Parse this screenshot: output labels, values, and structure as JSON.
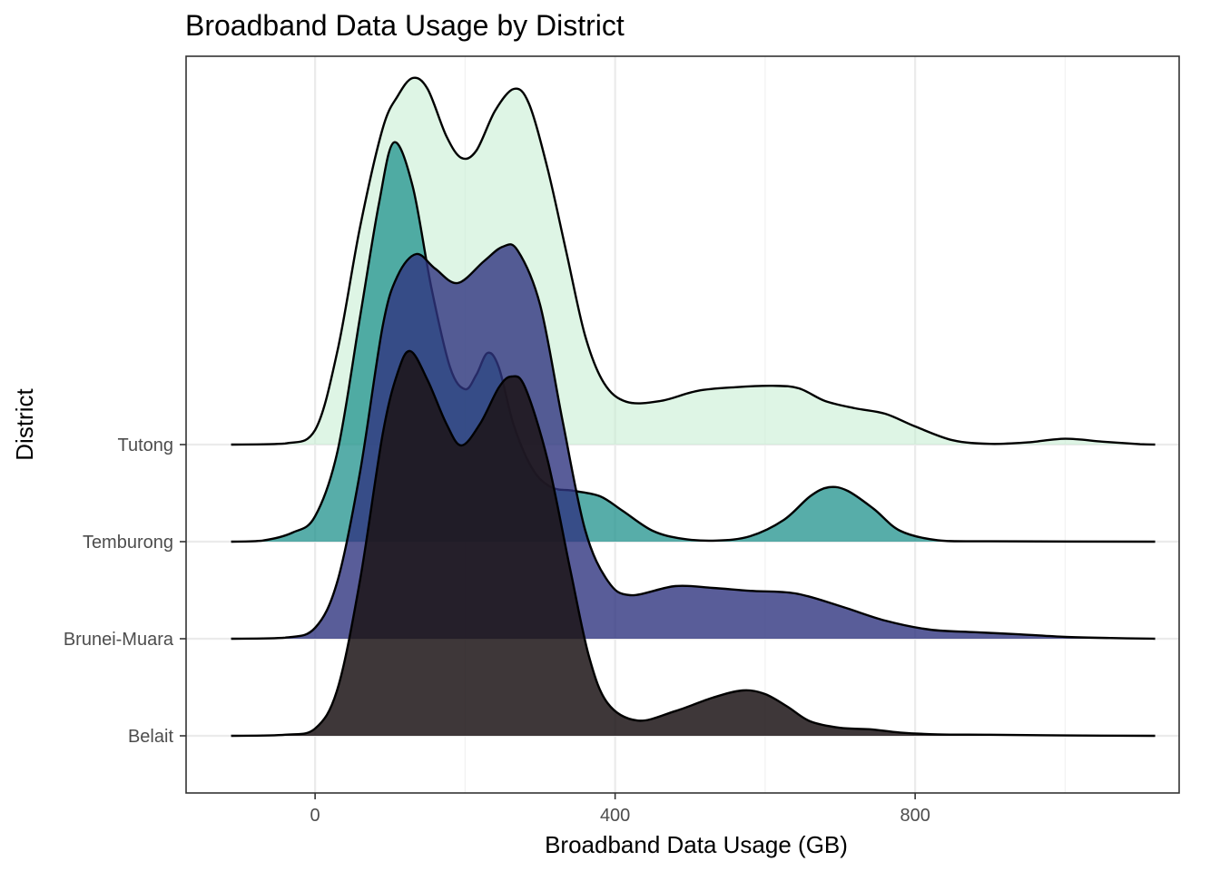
{
  "chart_data": {
    "type": "area",
    "subtype": "ridgeline",
    "title": "Broadband Data Usage by District",
    "xlabel": "Broadband Data Usage (GB)",
    "ylabel": "District",
    "xlim": [
      -172,
      1152
    ],
    "x_ticks": [
      0,
      400,
      800
    ],
    "x_minor_ticks": [
      200,
      600,
      1000
    ],
    "grid": true,
    "legend": "none",
    "categories": [
      "Belait",
      "Brunei-Muara",
      "Temburong",
      "Tutong"
    ],
    "series": [
      {
        "name": "Belait",
        "color": "#1c1416",
        "opacity": 0.85,
        "density": [
          [
            -112,
            0
          ],
          [
            -40,
            0.003
          ],
          [
            0,
            0.02
          ],
          [
            30,
            0.13
          ],
          [
            60,
            0.43
          ],
          [
            90,
            0.83
          ],
          [
            110,
            1.0
          ],
          [
            127,
            1.06
          ],
          [
            150,
            0.98
          ],
          [
            175,
            0.86
          ],
          [
            195,
            0.8
          ],
          [
            220,
            0.86
          ],
          [
            245,
            0.96
          ],
          [
            262,
            0.99
          ],
          [
            280,
            0.96
          ],
          [
            310,
            0.76
          ],
          [
            340,
            0.46
          ],
          [
            365,
            0.22
          ],
          [
            390,
            0.09
          ],
          [
            430,
            0.042
          ],
          [
            480,
            0.068
          ],
          [
            530,
            0.105
          ],
          [
            570,
            0.125
          ],
          [
            600,
            0.115
          ],
          [
            630,
            0.08
          ],
          [
            660,
            0.04
          ],
          [
            700,
            0.022
          ],
          [
            740,
            0.018
          ],
          [
            780,
            0.009
          ],
          [
            830,
            0.004
          ],
          [
            900,
            0.003
          ],
          [
            1000,
            0.001
          ],
          [
            1120,
            0
          ]
        ]
      },
      {
        "name": "Brunei-Muara",
        "color": "#303580",
        "opacity": 0.8,
        "density": [
          [
            -112,
            0
          ],
          [
            -40,
            0.003
          ],
          [
            0,
            0.03
          ],
          [
            30,
            0.16
          ],
          [
            60,
            0.46
          ],
          [
            90,
            0.86
          ],
          [
            110,
            1.0
          ],
          [
            135,
            1.06
          ],
          [
            160,
            1.02
          ],
          [
            190,
            0.98
          ],
          [
            225,
            1.04
          ],
          [
            250,
            1.08
          ],
          [
            270,
            1.07
          ],
          [
            300,
            0.92
          ],
          [
            330,
            0.6
          ],
          [
            360,
            0.3
          ],
          [
            390,
            0.16
          ],
          [
            420,
            0.12
          ],
          [
            480,
            0.145
          ],
          [
            530,
            0.14
          ],
          [
            580,
            0.132
          ],
          [
            640,
            0.125
          ],
          [
            700,
            0.09
          ],
          [
            760,
            0.05
          ],
          [
            820,
            0.025
          ],
          [
            880,
            0.018
          ],
          [
            940,
            0.012
          ],
          [
            1000,
            0.005
          ],
          [
            1060,
            0.002
          ],
          [
            1120,
            0
          ]
        ]
      },
      {
        "name": "Temburong",
        "color": "#1f918c",
        "opacity": 0.75,
        "density": [
          [
            -112,
            0
          ],
          [
            -70,
            0.003
          ],
          [
            -30,
            0.025
          ],
          [
            0,
            0.07
          ],
          [
            30,
            0.25
          ],
          [
            60,
            0.62
          ],
          [
            85,
            0.93
          ],
          [
            105,
            1.1
          ],
          [
            130,
            0.98
          ],
          [
            155,
            0.7
          ],
          [
            180,
            0.48
          ],
          [
            200,
            0.42
          ],
          [
            215,
            0.46
          ],
          [
            230,
            0.52
          ],
          [
            245,
            0.48
          ],
          [
            265,
            0.32
          ],
          [
            290,
            0.2
          ],
          [
            315,
            0.15
          ],
          [
            345,
            0.14
          ],
          [
            380,
            0.125
          ],
          [
            410,
            0.085
          ],
          [
            450,
            0.03
          ],
          [
            490,
            0.008
          ],
          [
            535,
            0.003
          ],
          [
            580,
            0.015
          ],
          [
            625,
            0.06
          ],
          [
            660,
            0.125
          ],
          [
            685,
            0.15
          ],
          [
            710,
            0.14
          ],
          [
            745,
            0.09
          ],
          [
            780,
            0.03
          ],
          [
            830,
            0.004
          ],
          [
            900,
            0.001
          ],
          [
            1120,
            0
          ]
        ]
      },
      {
        "name": "Tutong",
        "color": "#c3edd0",
        "opacity": 0.55,
        "density": [
          [
            -112,
            0
          ],
          [
            -40,
            0.003
          ],
          [
            0,
            0.04
          ],
          [
            30,
            0.26
          ],
          [
            60,
            0.6
          ],
          [
            90,
            0.87
          ],
          [
            110,
            0.96
          ],
          [
            130,
            1.01
          ],
          [
            150,
            0.98
          ],
          [
            175,
            0.85
          ],
          [
            195,
            0.79
          ],
          [
            215,
            0.81
          ],
          [
            240,
            0.92
          ],
          [
            265,
            0.98
          ],
          [
            285,
            0.94
          ],
          [
            310,
            0.76
          ],
          [
            335,
            0.53
          ],
          [
            360,
            0.3
          ],
          [
            385,
            0.17
          ],
          [
            415,
            0.118
          ],
          [
            460,
            0.12
          ],
          [
            510,
            0.148
          ],
          [
            560,
            0.158
          ],
          [
            610,
            0.162
          ],
          [
            645,
            0.155
          ],
          [
            680,
            0.12
          ],
          [
            720,
            0.1
          ],
          [
            760,
            0.085
          ],
          [
            800,
            0.05
          ],
          [
            850,
            0.012
          ],
          [
            900,
            0.002
          ],
          [
            950,
            0.006
          ],
          [
            1000,
            0.016
          ],
          [
            1050,
            0.008
          ],
          [
            1100,
            0.001
          ],
          [
            1120,
            0
          ]
        ]
      }
    ]
  }
}
